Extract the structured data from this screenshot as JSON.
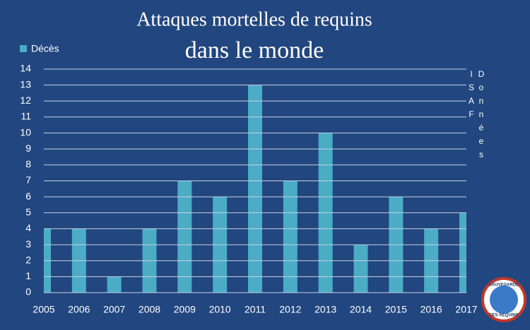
{
  "chart_data": {
    "type": "bar",
    "title": "Attaques mortelles de requins",
    "subtitle": "dans le monde",
    "categories": [
      "2005",
      "2006",
      "2007",
      "2008",
      "2009",
      "2010",
      "2011",
      "2012",
      "2013",
      "2014",
      "2015",
      "2016",
      "2017"
    ],
    "series": [
      {
        "name": "Décès",
        "color": "#4bacc6",
        "values": [
          4,
          4,
          1,
          4,
          7,
          6,
          13,
          7,
          10,
          3,
          6,
          4,
          5
        ]
      }
    ],
    "ylim": [
      0,
      14
    ],
    "yticks": [
      0,
      1,
      2,
      3,
      4,
      5,
      6,
      7,
      8,
      9,
      10,
      11,
      12,
      13,
      14
    ],
    "grid": true,
    "legend": "top-left",
    "annotation": "Données ISAF"
  },
  "logo": {
    "top": "SAUVEGARDE",
    "bottom": "DES REQUINS"
  }
}
